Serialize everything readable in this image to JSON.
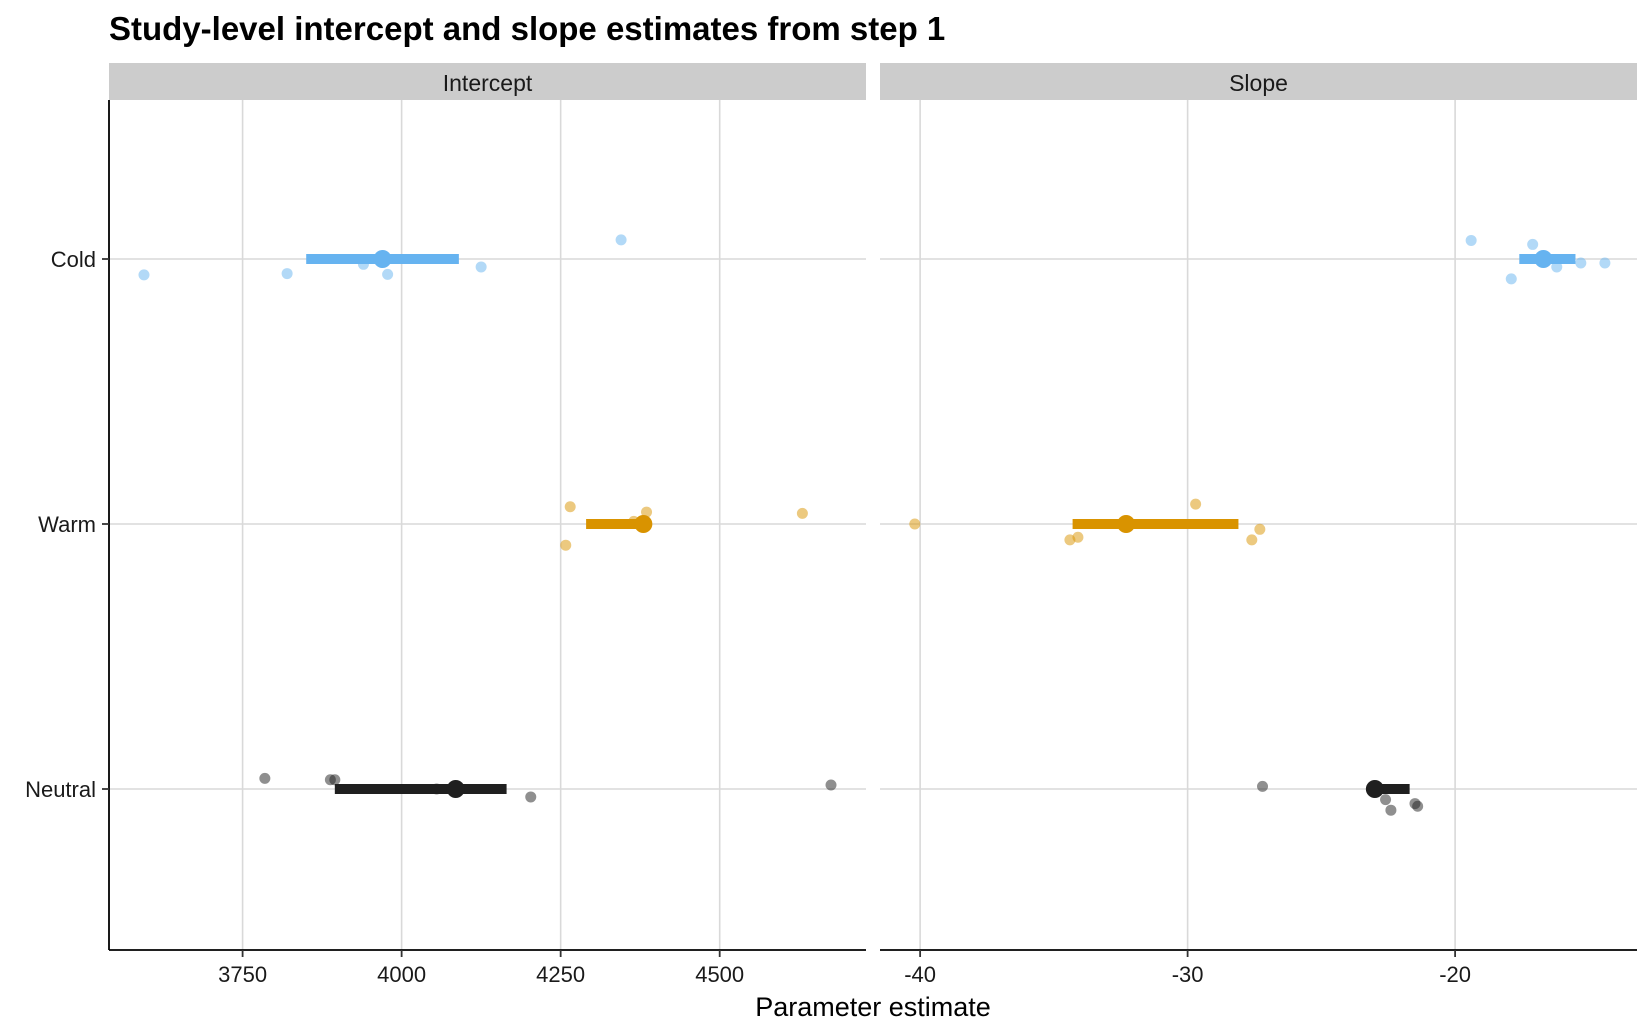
{
  "chart_data": {
    "type": "scatter",
    "title": "Study-level intercept and slope estimates from step 1",
    "xlabel": "Parameter estimate",
    "ylabel": "",
    "categories": [
      "Cold",
      "Warm",
      "Neutral"
    ],
    "colors": {
      "Cold": "#66b3f0",
      "Warm": "#d99300",
      "Neutral": "#1f1f1f"
    },
    "grid": true,
    "panels": [
      {
        "name": "Intercept",
        "xlim": [
          3540,
          4730
        ],
        "xticks": [
          3750,
          4000,
          4250,
          4500
        ],
        "xtick_labels": [
          "3750",
          "4000",
          "4250",
          "4500"
        ],
        "summary": [
          {
            "group": "Cold",
            "mean": 3970,
            "lo": 3850,
            "hi": 4090
          },
          {
            "group": "Warm",
            "mean": 4380,
            "lo": 4290,
            "hi": 4385
          },
          {
            "group": "Neutral",
            "mean": 4085,
            "lo": 3895,
            "hi": 4165
          }
        ],
        "points": [
          {
            "group": "Cold",
            "x": 3595,
            "jitter": -0.06
          },
          {
            "group": "Cold",
            "x": 3820,
            "jitter": -0.055
          },
          {
            "group": "Cold",
            "x": 3940,
            "jitter": -0.02
          },
          {
            "group": "Cold",
            "x": 3978,
            "jitter": -0.058
          },
          {
            "group": "Cold",
            "x": 4125,
            "jitter": -0.03
          },
          {
            "group": "Cold",
            "x": 4345,
            "jitter": 0.072
          },
          {
            "group": "Warm",
            "x": 4258,
            "jitter": -0.08
          },
          {
            "group": "Warm",
            "x": 4265,
            "jitter": 0.065
          },
          {
            "group": "Warm",
            "x": 4365,
            "jitter": 0.01
          },
          {
            "group": "Warm",
            "x": 4385,
            "jitter": 0.045
          },
          {
            "group": "Warm",
            "x": 4630,
            "jitter": 0.04
          },
          {
            "group": "Neutral",
            "x": 3785,
            "jitter": 0.04
          },
          {
            "group": "Neutral",
            "x": 3888,
            "jitter": 0.035
          },
          {
            "group": "Neutral",
            "x": 3895,
            "jitter": 0.035
          },
          {
            "group": "Neutral",
            "x": 4055,
            "jitter": 0.0
          },
          {
            "group": "Neutral",
            "x": 4203,
            "jitter": -0.03
          },
          {
            "group": "Neutral",
            "x": 4675,
            "jitter": 0.015
          }
        ]
      },
      {
        "name": "Slope",
        "xlim": [
          -41.5,
          -13.2
        ],
        "xticks": [
          -40,
          -30,
          -20
        ],
        "xtick_labels": [
          "-40",
          "-30",
          "-20"
        ],
        "summary": [
          {
            "group": "Cold",
            "mean": -16.7,
            "lo": -17.6,
            "hi": -15.5
          },
          {
            "group": "Warm",
            "mean": -32.3,
            "lo": -34.3,
            "hi": -28.1
          },
          {
            "group": "Neutral",
            "mean": -23.0,
            "lo": -23.0,
            "hi": -21.7
          }
        ],
        "points": [
          {
            "group": "Cold",
            "x": -19.4,
            "jitter": 0.07
          },
          {
            "group": "Cold",
            "x": -17.9,
            "jitter": -0.075
          },
          {
            "group": "Cold",
            "x": -17.1,
            "jitter": 0.055
          },
          {
            "group": "Cold",
            "x": -16.2,
            "jitter": -0.03
          },
          {
            "group": "Cold",
            "x": -15.3,
            "jitter": -0.015
          },
          {
            "group": "Cold",
            "x": -14.4,
            "jitter": -0.015
          },
          {
            "group": "Warm",
            "x": -40.2,
            "jitter": 0.0
          },
          {
            "group": "Warm",
            "x": -34.4,
            "jitter": -0.06
          },
          {
            "group": "Warm",
            "x": -34.1,
            "jitter": -0.05
          },
          {
            "group": "Warm",
            "x": -29.7,
            "jitter": 0.075
          },
          {
            "group": "Warm",
            "x": -27.6,
            "jitter": -0.06
          },
          {
            "group": "Warm",
            "x": -27.3,
            "jitter": -0.02
          },
          {
            "group": "Neutral",
            "x": -27.2,
            "jitter": 0.01
          },
          {
            "group": "Neutral",
            "x": -22.6,
            "jitter": -0.04
          },
          {
            "group": "Neutral",
            "x": -22.4,
            "jitter": -0.08
          },
          {
            "group": "Neutral",
            "x": -21.5,
            "jitter": -0.055
          },
          {
            "group": "Neutral",
            "x": -21.4,
            "jitter": -0.065
          }
        ]
      }
    ]
  }
}
